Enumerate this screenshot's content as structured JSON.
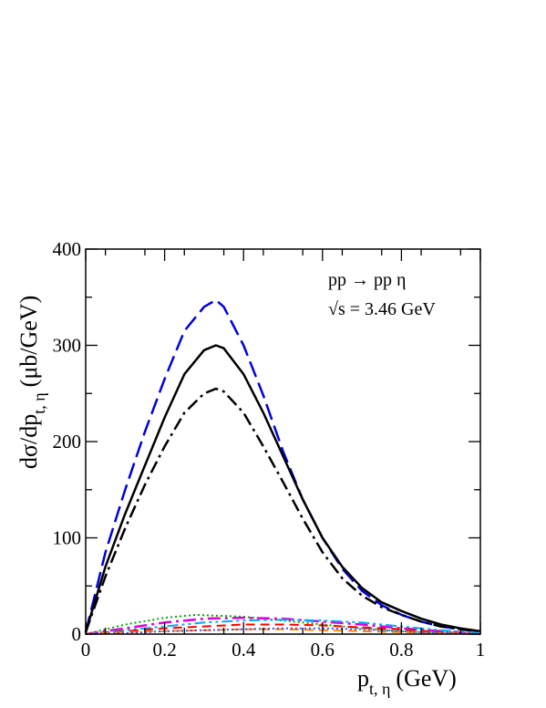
{
  "chart_data": {
    "type": "line",
    "annotations": {
      "reaction": "pp → pp η",
      "energy_label": "√s = 3.46 GeV"
    },
    "xlabel": {
      "main": "p",
      "sub": "t, η",
      "unit": "(GeV)"
    },
    "ylabel": {
      "main": "dσ/dp",
      "sub": "t, η",
      "unit": "(μb/GeV)"
    },
    "xlim": [
      0,
      1
    ],
    "ylim": [
      0,
      400
    ],
    "xticks": [
      0,
      0.2,
      0.4,
      0.6,
      0.8,
      1
    ],
    "xtick_labels": [
      "0",
      "0.2",
      "0.4",
      "0.6",
      "0.8",
      "1"
    ],
    "yticks": [
      0,
      100,
      200,
      300,
      400
    ],
    "ytick_labels": [
      "0",
      "100",
      "200",
      "300",
      "400"
    ],
    "grid": false,
    "series": [
      {
        "style": "long-dash",
        "color": "#0000dd",
        "x": [
          0,
          0.05,
          0.1,
          0.15,
          0.2,
          0.25,
          0.3,
          0.33,
          0.35,
          0.4,
          0.45,
          0.5,
          0.55,
          0.6,
          0.65,
          0.7,
          0.75,
          0.8,
          0.85,
          0.9,
          0.95,
          1.0
        ],
        "y": [
          2,
          85,
          150,
          210,
          265,
          315,
          340,
          347,
          340,
          300,
          248,
          190,
          140,
          100,
          68,
          45,
          30,
          20,
          13,
          8,
          5,
          3
        ]
      },
      {
        "style": "solid",
        "color": "#000000",
        "x": [
          0,
          0.05,
          0.1,
          0.15,
          0.2,
          0.25,
          0.3,
          0.33,
          0.35,
          0.4,
          0.45,
          0.5,
          0.55,
          0.6,
          0.65,
          0.7,
          0.75,
          0.8,
          0.85,
          0.9,
          0.95,
          1.0
        ],
        "y": [
          2,
          70,
          125,
          175,
          225,
          270,
          295,
          300,
          297,
          270,
          230,
          185,
          140,
          100,
          70,
          48,
          33,
          24,
          16,
          10,
          6,
          3
        ]
      },
      {
        "style": "dash-dot",
        "color": "#000000",
        "x": [
          0,
          0.05,
          0.1,
          0.15,
          0.2,
          0.25,
          0.3,
          0.33,
          0.35,
          0.4,
          0.45,
          0.5,
          0.55,
          0.6,
          0.65,
          0.7,
          0.75,
          0.8,
          0.85,
          0.9,
          0.95,
          1.0
        ],
        "y": [
          2,
          60,
          110,
          155,
          195,
          230,
          250,
          255,
          252,
          230,
          195,
          158,
          120,
          85,
          58,
          40,
          28,
          20,
          13,
          8,
          5,
          2
        ]
      },
      {
        "style": "dotted",
        "color": "#00aa00",
        "x": [
          0,
          0.1,
          0.2,
          0.28,
          0.4,
          0.5,
          0.6,
          0.7,
          0.8,
          0.9,
          1.0
        ],
        "y": [
          0,
          10,
          17,
          20,
          18,
          14,
          10,
          6,
          3,
          1,
          0
        ]
      },
      {
        "style": "dash-dot",
        "color": "#dd00dd",
        "x": [
          0,
          0.1,
          0.2,
          0.3,
          0.4,
          0.5,
          0.6,
          0.7,
          0.8,
          0.9,
          1.0
        ],
        "y": [
          0,
          6,
          12,
          16,
          17,
          16,
          13,
          10,
          6,
          3,
          0
        ]
      },
      {
        "style": "dash-dot-dot",
        "color": "#00aaff",
        "x": [
          0,
          0.1,
          0.2,
          0.3,
          0.4,
          0.5,
          0.6,
          0.7,
          0.8,
          0.9,
          1.0
        ],
        "y": [
          0,
          4,
          8,
          12,
          14,
          15,
          14,
          12,
          8,
          4,
          1
        ]
      },
      {
        "style": "dashed",
        "color": "#ff0000",
        "x": [
          0,
          0.1,
          0.2,
          0.3,
          0.4,
          0.5,
          0.6,
          0.7,
          0.8,
          0.9,
          1.0
        ],
        "y": [
          0,
          3,
          6,
          8,
          10,
          10,
          9,
          7,
          5,
          2,
          0
        ]
      },
      {
        "style": "dashed",
        "color": "#ff8800",
        "x": [
          0,
          0.1,
          0.2,
          0.3,
          0.4,
          0.5,
          0.6,
          0.7,
          0.8,
          0.9,
          1.0
        ],
        "y": [
          0,
          2,
          3,
          4,
          5,
          5,
          4,
          3,
          2,
          1,
          0
        ]
      },
      {
        "style": "dotted",
        "color": "#4444ff",
        "x": [
          0,
          0.1,
          0.2,
          0.3,
          0.4,
          0.5,
          0.6,
          0.7,
          0.8,
          0.9,
          1.0
        ],
        "y": [
          0,
          1,
          3,
          4,
          5,
          6,
          6,
          5,
          3,
          1,
          0
        ]
      }
    ]
  }
}
